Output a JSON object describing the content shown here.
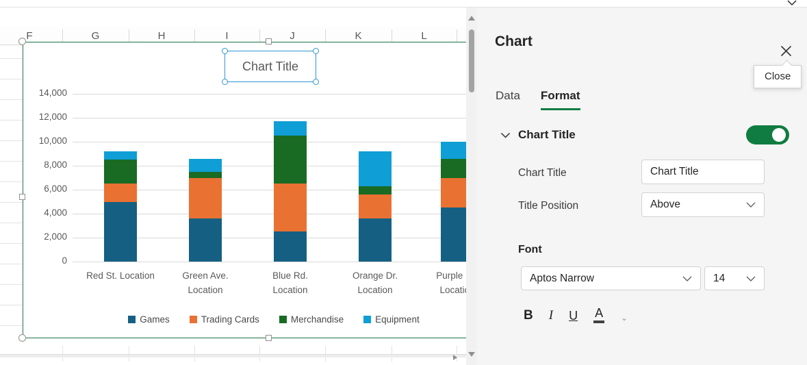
{
  "window": {
    "ribbon_caret_icon": "chevron-down"
  },
  "sheet": {
    "columns": [
      "F",
      "G",
      "H",
      "I",
      "J",
      "K",
      "L"
    ]
  },
  "chart_data": {
    "type": "bar",
    "subtype": "stacked-column",
    "title": "Chart Title",
    "categories": [
      "Red St. Location",
      "Green Ave. Location",
      "Blue Rd. Location",
      "Orange Dr. Location",
      "Purple Ln. Location"
    ],
    "category_display_lines": [
      [
        "Red St. Location"
      ],
      [
        "Green Ave.",
        "Location"
      ],
      [
        "Blue Rd.",
        "Location"
      ],
      [
        "Orange Dr.",
        "Location"
      ],
      [
        "Purple Ln.",
        "Location"
      ]
    ],
    "series": [
      {
        "name": "Games",
        "color": "#156082",
        "values": [
          5000,
          3600,
          2500,
          3600,
          4500
        ]
      },
      {
        "name": "Trading Cards",
        "color": "#E97132",
        "values": [
          1500,
          3400,
          4000,
          2000,
          2500
        ]
      },
      {
        "name": "Merchandise",
        "color": "#196B24",
        "values": [
          2000,
          500,
          4000,
          700,
          1600
        ]
      },
      {
        "name": "Equipment",
        "color": "#0F9ED5",
        "values": [
          700,
          1100,
          1200,
          2900,
          1400
        ]
      }
    ],
    "stack_totals": [
      9200,
      8600,
      11700,
      9200,
      10000
    ],
    "ylim": [
      0,
      14000
    ],
    "ytick_step": 2000,
    "ytick_labels": [
      "0",
      "2,000",
      "4,000",
      "6,000",
      "8,000",
      "10,000",
      "12,000",
      "14,000"
    ],
    "legend_position": "bottom",
    "grid": true
  },
  "panel": {
    "title": "Chart",
    "close_tooltip": "Close",
    "tabs": [
      {
        "label": "Data",
        "active": false
      },
      {
        "label": "Format",
        "active": true
      }
    ],
    "sections": {
      "chart_title": {
        "label": "Chart Title",
        "toggle_on": true
      }
    },
    "fields": {
      "chart_title": {
        "label": "Chart Title",
        "value": "Chart Title"
      },
      "title_position": {
        "label": "Title Position",
        "value": "Above"
      }
    },
    "font": {
      "header": "Font",
      "family_value": "Aptos Narrow",
      "size_value": "14",
      "bold_label": "B",
      "italic_label": "I",
      "underline_label": "U",
      "font_color_label": "A"
    }
  },
  "colors": {
    "excel_green": "#107C41",
    "chart_border_green": "#217346",
    "selection_blue": "#2E95D3",
    "axis_text": "#595959"
  }
}
